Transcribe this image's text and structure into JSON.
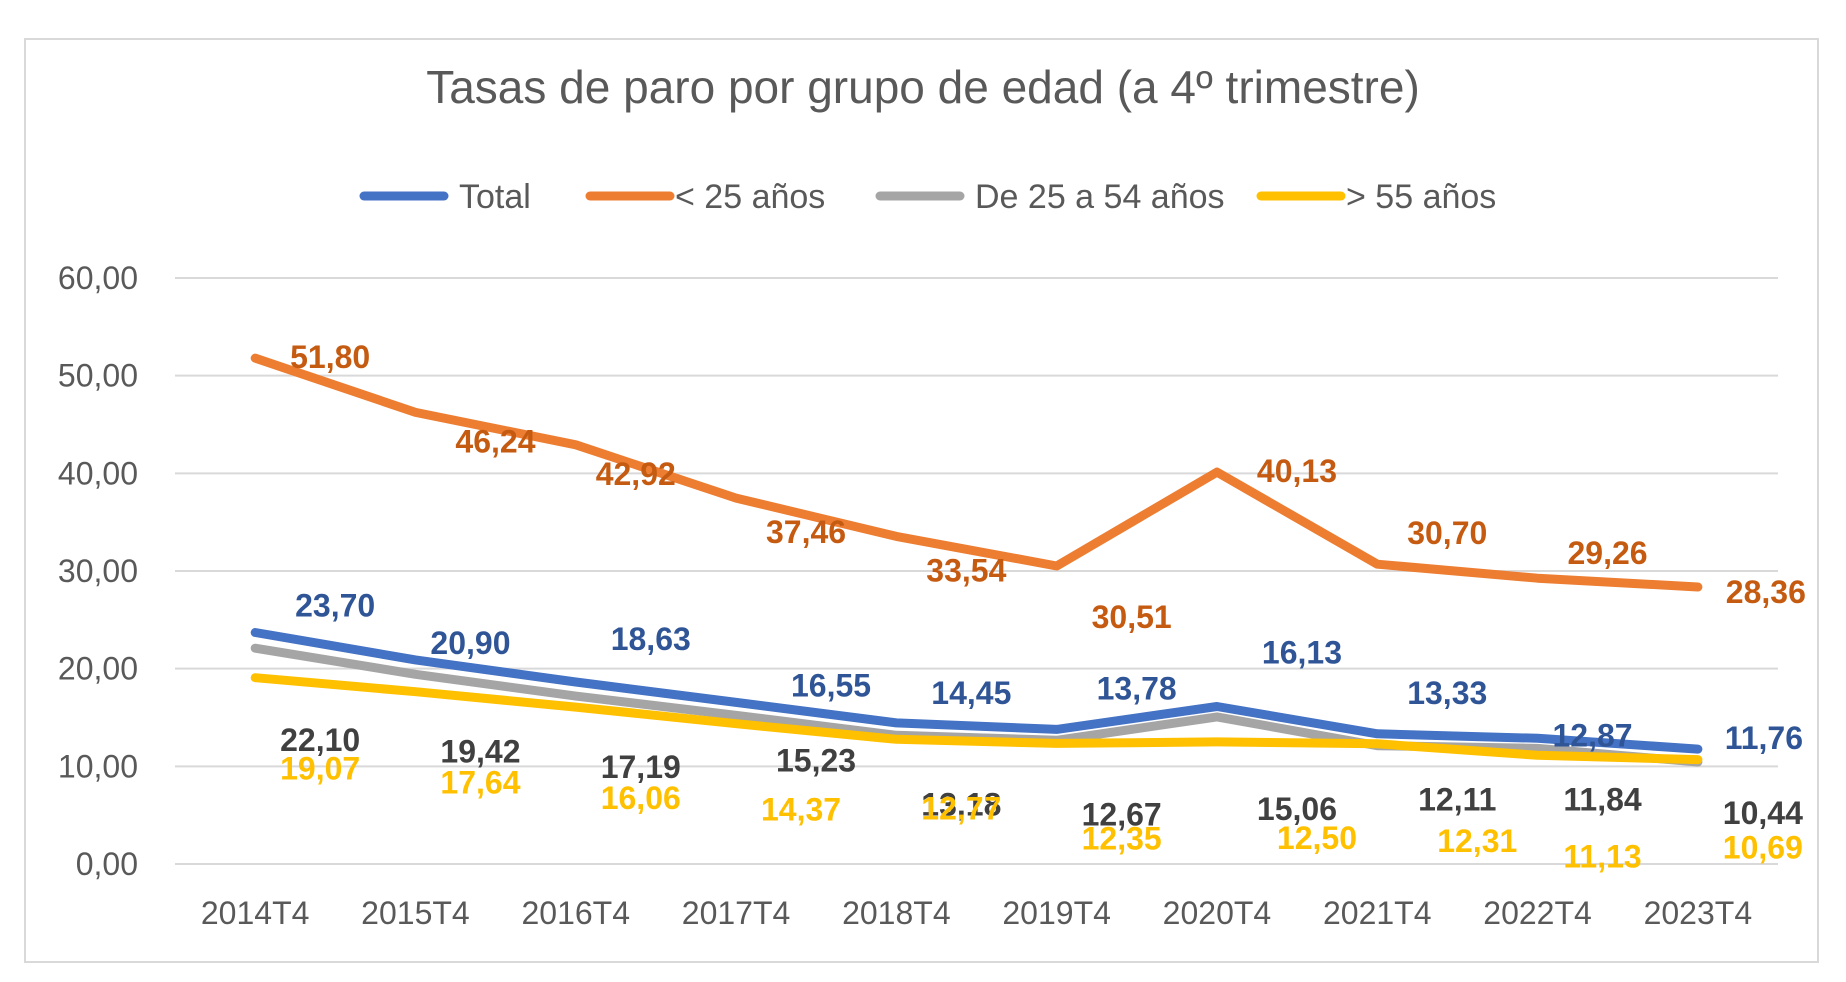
{
  "chart_data": {
    "type": "line",
    "title": "Tasas de paro por grupo de edad (a 4º trimestre)",
    "categories": [
      "2014T4",
      "2015T4",
      "2016T4",
      "2017T4",
      "2018T4",
      "2019T4",
      "2020T4",
      "2021T4",
      "2022T4",
      "2023T4"
    ],
    "ylim": [
      0,
      60
    ],
    "yticks": [
      "0,00",
      "10,00",
      "20,00",
      "30,00",
      "40,00",
      "50,00",
      "60,00"
    ],
    "grid": true,
    "legend_position": "top",
    "series": [
      {
        "name": "Total",
        "color": "#4472C4",
        "label_color": "#2F5597",
        "values": [
          23.7,
          20.9,
          18.63,
          16.55,
          14.45,
          13.78,
          16.13,
          13.33,
          12.87,
          11.76
        ],
        "labels": [
          "23,70",
          "20,90",
          "18,63",
          "16,55",
          "14,45",
          "13,78",
          "16,13",
          "13,33",
          "12,87",
          "11,76"
        ]
      },
      {
        "name": "< 25 años",
        "color": "#ED7D31",
        "label_color": "#C55A11",
        "values": [
          51.8,
          46.24,
          42.92,
          37.46,
          33.54,
          30.51,
          40.13,
          30.7,
          29.26,
          28.36
        ],
        "labels": [
          "51,80",
          "46,24",
          "42,92",
          "37,46",
          "33,54",
          "30,51",
          "40,13",
          "30,70",
          "29,26",
          "28,36"
        ]
      },
      {
        "name": "De 25 a 54 años",
        "color": "#A5A5A5",
        "label_color": "#404040",
        "values": [
          22.1,
          19.42,
          17.19,
          15.23,
          13.18,
          12.67,
          15.06,
          12.11,
          11.84,
          10.44
        ],
        "labels": [
          "22,10",
          "19,42",
          "17,19",
          "15,23",
          "13,18",
          "12,67",
          "15,06",
          "12,11",
          "11,84",
          "10,44"
        ]
      },
      {
        "name": "> 55 años",
        "color": "#FFC000",
        "label_color": "#FFC000",
        "values": [
          19.07,
          17.64,
          16.06,
          14.37,
          12.77,
          12.35,
          12.5,
          12.31,
          11.13,
          10.69
        ],
        "labels": [
          "19,07",
          "17,64",
          "16,06",
          "14,37",
          "12,77",
          "12,35",
          "12,50",
          "12,31",
          "11,13",
          "10,69"
        ]
      }
    ]
  }
}
